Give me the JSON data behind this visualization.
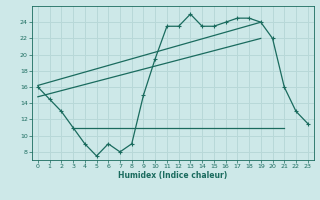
{
  "x": [
    0,
    1,
    2,
    3,
    4,
    5,
    6,
    7,
    8,
    9,
    10,
    11,
    12,
    13,
    14,
    15,
    16,
    17,
    18,
    19,
    20,
    21,
    22,
    23
  ],
  "y_main": [
    16,
    14.5,
    13,
    11,
    9,
    7.5,
    9,
    8,
    9,
    15,
    19.5,
    23.5,
    23.5,
    25,
    23.5,
    23.5,
    24,
    24.5,
    24.5,
    24,
    22,
    16,
    13,
    11.5
  ],
  "line1_x": [
    0,
    19
  ],
  "line1_y": [
    16.2,
    24.0
  ],
  "line2_x": [
    0,
    19
  ],
  "line2_y": [
    14.8,
    22.0
  ],
  "line3_x": [
    3,
    21
  ],
  "line3_y": [
    11,
    11
  ],
  "bg_color": "#cde8e8",
  "line_color": "#1a6b5e",
  "grid_color": "#b8d8d8",
  "xlabel": "Humidex (Indice chaleur)",
  "ylim": [
    7,
    26
  ],
  "xlim": [
    -0.5,
    23.5
  ],
  "yticks": [
    8,
    10,
    12,
    14,
    16,
    18,
    20,
    22,
    24
  ],
  "xticks": [
    0,
    1,
    2,
    3,
    4,
    5,
    6,
    7,
    8,
    9,
    10,
    11,
    12,
    13,
    14,
    15,
    16,
    17,
    18,
    19,
    20,
    21,
    22,
    23
  ]
}
